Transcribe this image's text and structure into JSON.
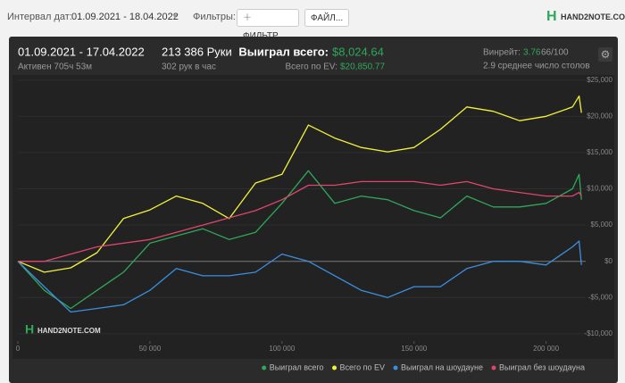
{
  "header": {
    "date_label": "Интервал дат:",
    "date_range": "01.09.2021 - 18.04.2022",
    "filters_label": "Фильтры:",
    "filter_button": "ФИЛЬТР...",
    "file_button": "ФАЙЛ...",
    "logo": "HAND2NOTE.COM"
  },
  "stats": {
    "period": "01.09.2021 - 17.04.2022",
    "active": "Активен 705ч 53м",
    "hands": "213 386 Руки",
    "hands_per_hour": "302 рук в час",
    "won_label": "Выиграл всего:",
    "won_value": "$8,024.64",
    "ev_label": "Всего по EV:",
    "ev_value": "$20,850.77",
    "winrate_label": "Винрейт:",
    "winrate_value": "3.76",
    "winrate_unit": "66/100",
    "tables": "2.9 среднее число столов"
  },
  "chart_data": {
    "type": "line",
    "watermark": "HAND2NOTE.COM",
    "x": [
      0,
      10000,
      20000,
      30000,
      40000,
      50000,
      60000,
      70000,
      80000,
      90000,
      100000,
      110000,
      120000,
      130000,
      140000,
      150000,
      160000,
      170000,
      180000,
      190000,
      200000,
      210000,
      212500,
      213386
    ],
    "xlim": [
      0,
      215000
    ],
    "xticks": [
      0,
      {
        "value": 50000,
        "label": "50 000"
      },
      {
        "value": 100000,
        "label": "100 000"
      },
      {
        "value": 150000,
        "label": "150 000"
      },
      {
        "value": 200000,
        "label": "200 000"
      }
    ],
    "ylim": [
      -11000,
      26200
    ],
    "yticks": [
      {
        "value": -10000,
        "label": "-$10,000"
      },
      {
        "value": -5000,
        "label": "-$5,000"
      },
      {
        "value": 0,
        "label": "$0"
      },
      {
        "value": 5000,
        "label": "$5,000"
      },
      {
        "value": 10000,
        "label": "$10,000"
      },
      {
        "value": 15000,
        "label": "$15,000"
      },
      {
        "value": 20000,
        "label": "$20,000"
      },
      {
        "value": 25000,
        "label": "$25,000"
      }
    ],
    "grid": true,
    "series": [
      {
        "name": "Выиграл всего",
        "color": "#2ea85a",
        "values": [
          0,
          -4000,
          -6500,
          -4000,
          -1500,
          2500,
          3500,
          4500,
          3000,
          4000,
          8000,
          12500,
          8000,
          9000,
          8500,
          7000,
          6000,
          9000,
          7500,
          7500,
          8000,
          10000,
          12000,
          8500
        ]
      },
      {
        "name": "Всего по EV",
        "color": "#f2f23a",
        "values": [
          0,
          -1500,
          -900,
          1200,
          5900,
          7100,
          9000,
          8000,
          5900,
          10800,
          12000,
          18800,
          17000,
          15700,
          15100,
          15700,
          18200,
          21300,
          20700,
          19400,
          20000,
          21300,
          22800,
          20500
        ]
      },
      {
        "name": "Выиграл на шоудауне",
        "color": "#3b8fe0",
        "values": [
          0,
          -3500,
          -7000,
          -6500,
          -6000,
          -4000,
          -1000,
          -2000,
          -2000,
          -1500,
          1000,
          0,
          -2000,
          -4000,
          -5000,
          -3500,
          -3500,
          -1000,
          0,
          0,
          -500,
          2000,
          2800,
          -500
        ]
      },
      {
        "name": "Выиграл без шоудауна",
        "color": "#e0456e",
        "values": [
          0,
          0,
          1000,
          2000,
          2500,
          3000,
          4000,
          5000,
          6000,
          7000,
          8500,
          10500,
          10500,
          11000,
          11000,
          11000,
          10500,
          11000,
          10000,
          9500,
          9000,
          9000,
          9500,
          9000
        ]
      }
    ]
  }
}
